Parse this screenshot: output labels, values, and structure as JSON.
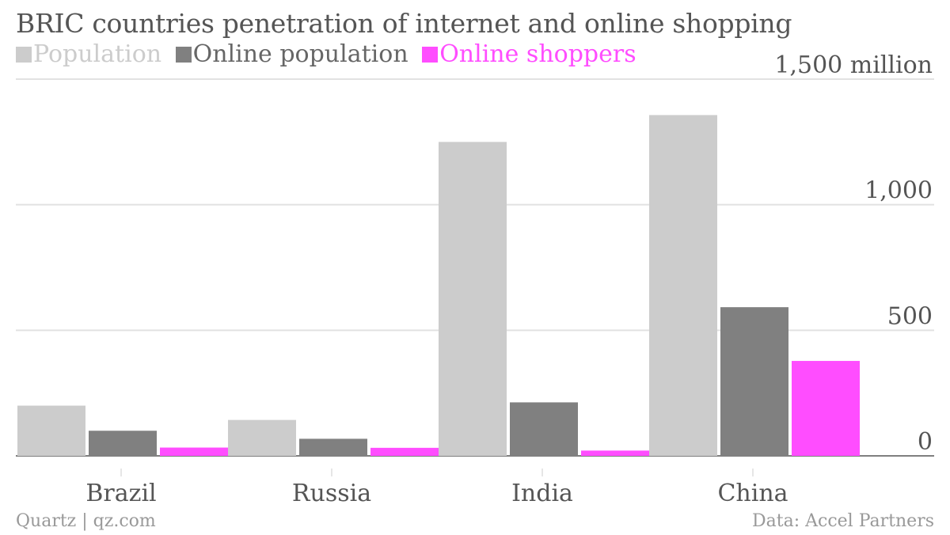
{
  "chart_data": {
    "type": "bar",
    "title": "BRIC countries penetration of internet and online shopping",
    "categories": [
      "Brazil",
      "Russia",
      "India",
      "China"
    ],
    "series": [
      {
        "name": "Population",
        "color": "#cccccc",
        "values": [
          200,
          143,
          1250,
          1357
        ]
      },
      {
        "name": "Online population",
        "color": "#808080",
        "values": [
          100,
          68,
          213,
          592
        ]
      },
      {
        "name": "Online shoppers",
        "color": "#ff4dff",
        "values": [
          33,
          32,
          21,
          378
        ]
      }
    ],
    "ylim": [
      0,
      1500
    ],
    "yticks": [
      {
        "value": 0,
        "label": "0"
      },
      {
        "value": 500,
        "label": "500"
      },
      {
        "value": 1000,
        "label": "1,000"
      },
      {
        "value": 1500,
        "label": "1,500 million"
      }
    ],
    "xlabel": "",
    "ylabel": "",
    "grid": true,
    "legend_position": "top-left"
  },
  "footer": {
    "source_left": "Quartz | qz.com",
    "source_right": "Data: Accel Partners"
  }
}
